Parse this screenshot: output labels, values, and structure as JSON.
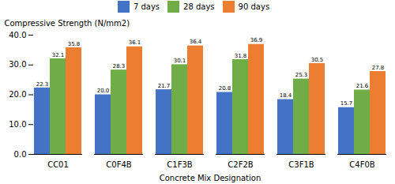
{
  "chart_data": {
    "type": "bar",
    "categories": [
      "CC01",
      "C0F4B",
      "C1F3B",
      "C2F2B",
      "C3F1B",
      "C4F0B"
    ],
    "series": [
      {
        "name": "7 days",
        "color": "#4472C4",
        "values": [
          22.3,
          20.0,
          21.7,
          20.8,
          18.4,
          15.7
        ],
        "value_labels": [
          "22.3",
          "20.0",
          "21.7",
          "20.8",
          "18.4",
          "15.7"
        ]
      },
      {
        "name": "28 days",
        "color": "#70AD47",
        "values": [
          32.1,
          28.3,
          30.1,
          31.8,
          25.3,
          21.6
        ],
        "value_labels": [
          "32.1",
          "28.3",
          "30.1",
          "31.8",
          "25.3",
          "21.6"
        ]
      },
      {
        "name": "90 days",
        "color": "#ED7D31",
        "values": [
          35.8,
          36.1,
          36.4,
          36.9,
          30.5,
          27.8
        ],
        "value_labels": [
          "35.8",
          "36.1",
          "36.4",
          "36.9",
          "30.5",
          "27.8"
        ]
      }
    ],
    "xlabel": "Concrete Mix Designation",
    "ylabel": "Compressive Strength (N/mm2)",
    "ylim": [
      0.0,
      40.0
    ],
    "yticks": [
      {
        "value": 0,
        "label": "0.0"
      },
      {
        "value": 10,
        "label": "10.0"
      },
      {
        "value": 20,
        "label": "20.0"
      },
      {
        "value": 30,
        "label": "30.0"
      },
      {
        "value": 40,
        "label": "40.0"
      }
    ],
    "data_labels": true,
    "legend": "top"
  }
}
